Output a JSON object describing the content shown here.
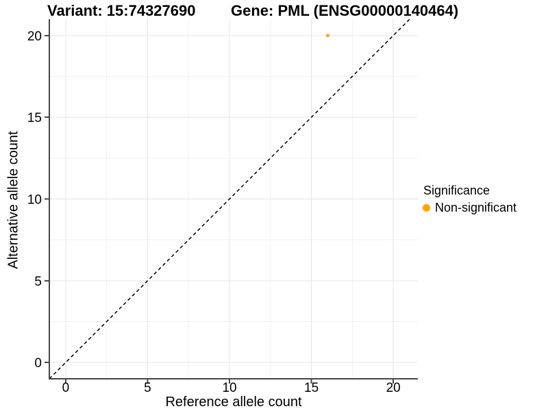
{
  "figure": {
    "title_variant": "Variant: 15:74327690",
    "title_gene": "Gene: PML (ENSG00000140464)"
  },
  "chart_data": {
    "type": "scatter",
    "title": "Variant: 15:74327690  Gene: PML (ENSG00000140464)",
    "xlabel": "Reference allele count",
    "ylabel": "Alternative allele count",
    "xlim": [
      -1,
      21.5
    ],
    "ylim": [
      -1,
      21
    ],
    "x_ticks": [
      0,
      5,
      10,
      15,
      20
    ],
    "y_ticks": [
      0,
      5,
      10,
      15,
      20
    ],
    "grid": "major+minor",
    "identity_line": {
      "style": "dashed",
      "slope": 1,
      "intercept": 0,
      "color": "#000000"
    },
    "series": [
      {
        "name": "Non-significant",
        "color": "#FFA500",
        "point_radius": 2.5,
        "points": [
          [
            16,
            20
          ]
        ]
      }
    ],
    "legend": {
      "title": "Significance",
      "position": "right",
      "items": [
        {
          "label": "Non-significant",
          "color": "#FFA500"
        }
      ]
    },
    "colors": {
      "axis_line": "#464646",
      "grid_major": "#e4e4e4",
      "grid_minor": "#f2f2f2",
      "text": "#000000"
    }
  }
}
